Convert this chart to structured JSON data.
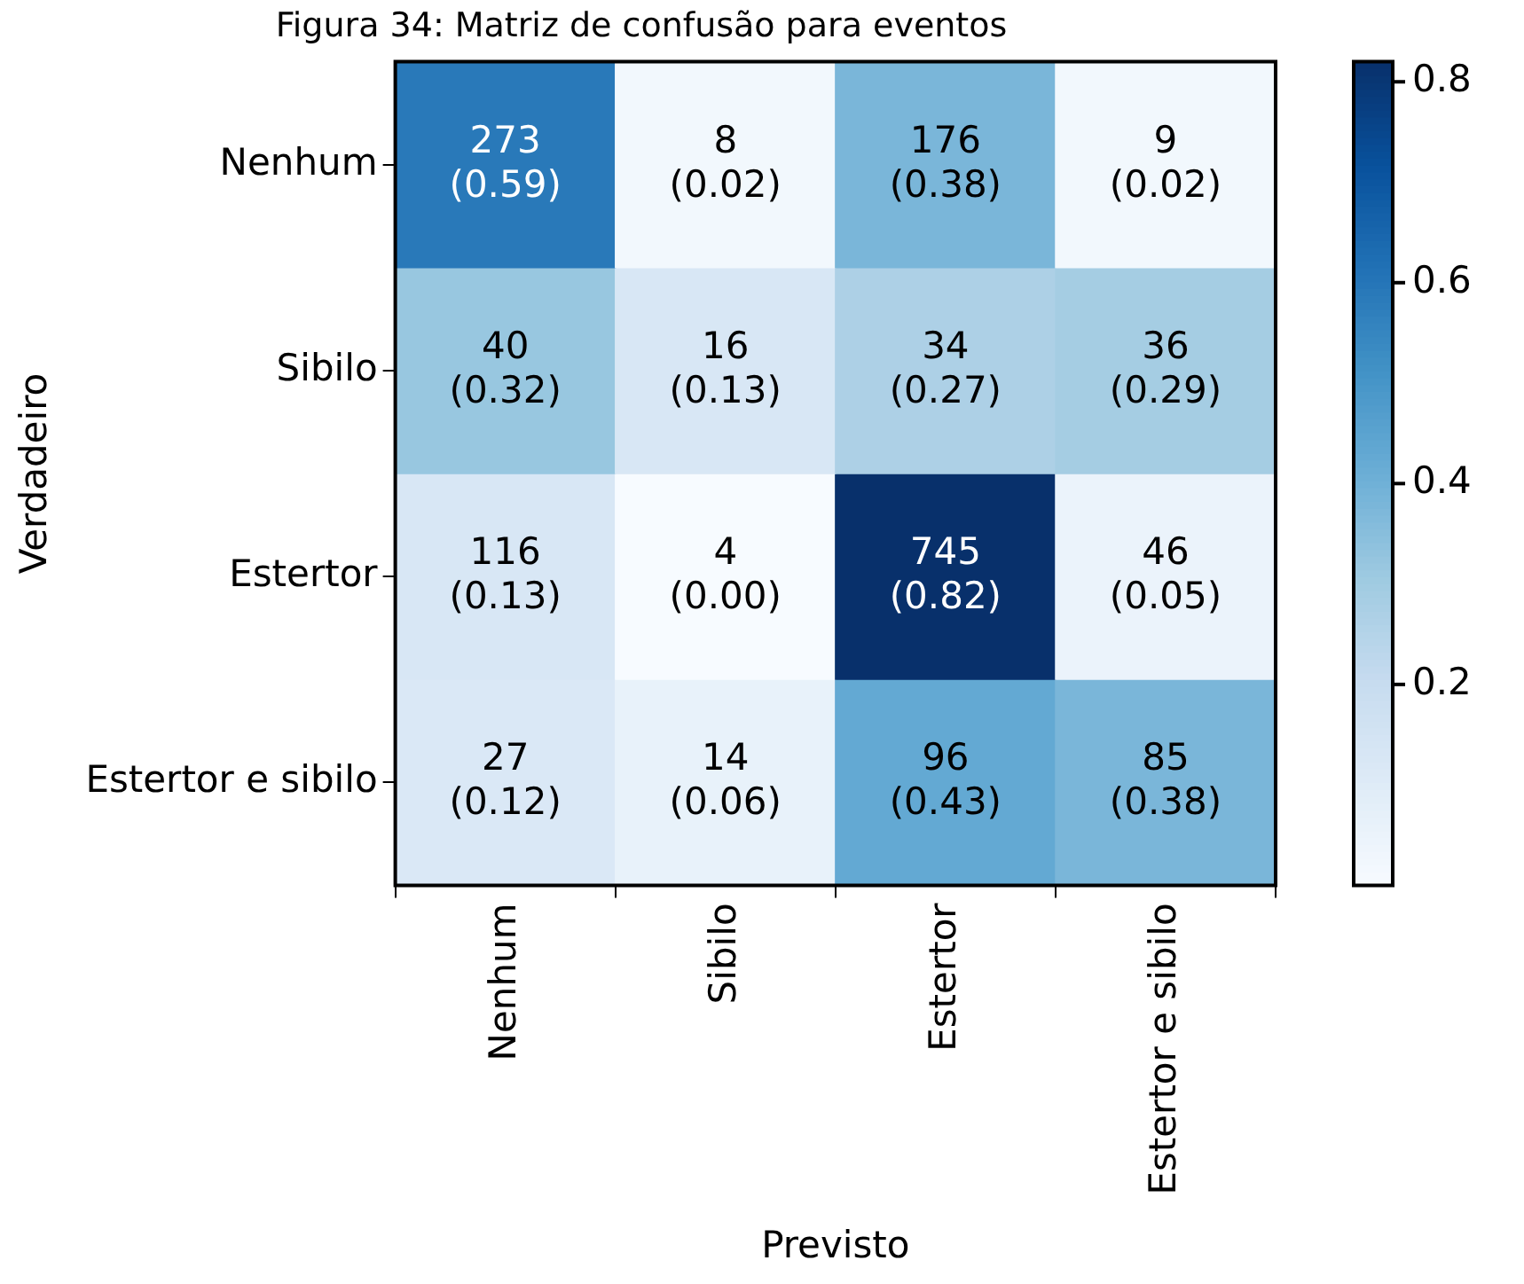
{
  "chart_data": {
    "type": "heatmap",
    "title": "Figura 34: Matriz de confusão para eventos",
    "xlabel": "Previsto",
    "ylabel": "Verdadeiro",
    "categories": [
      "Nenhum",
      "Sibilo",
      "Estertor",
      "Estertor e sibilo"
    ],
    "y_categories": [
      "Nenhum",
      "Sibilo",
      "Estertor",
      "Estertor e sibilo"
    ],
    "cells": [
      [
        0.59,
        0.02,
        0.38,
        0.02
      ],
      [
        0.32,
        0.13,
        0.27,
        0.29
      ],
      [
        0.13,
        0.0,
        0.82,
        0.05
      ],
      [
        0.12,
        0.06,
        0.43,
        0.38
      ]
    ],
    "cell_labels": [
      [
        "273\n(0.59)",
        "8\n(0.02)",
        "176\n(0.38)",
        "9\n(0.02)"
      ],
      [
        "40\n(0.32)",
        "16\n(0.13)",
        "34\n(0.27)",
        "36\n(0.29)"
      ],
      [
        "116\n(0.13)",
        "4\n(0.00)",
        "745\n(0.82)",
        "46\n(0.05)"
      ],
      [
        "27\n(0.12)",
        "14\n(0.06)",
        "96\n(0.43)",
        "85\n(0.38)"
      ]
    ],
    "clim": [
      0,
      0.82
    ],
    "cticks": [
      0.2,
      0.4,
      0.6,
      0.8
    ]
  }
}
